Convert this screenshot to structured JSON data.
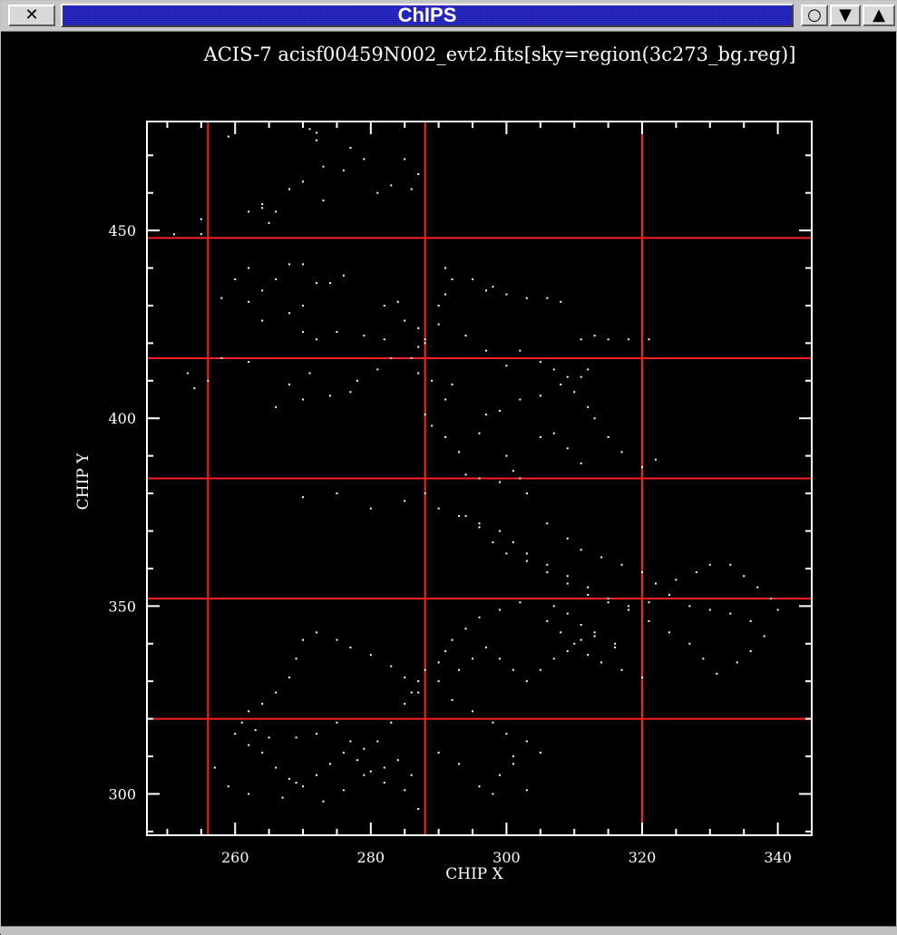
{
  "window": {
    "title": "ChIPS",
    "close_glyph": "✕",
    "iconify_glyph": "○",
    "menu_glyph": "▼",
    "maximize_glyph": "▲"
  },
  "chart_data": {
    "type": "scatter",
    "title": "ACIS-7 acisf00459N002_evt2.fits[sky=region(3c273_bg.reg)]",
    "xlabel": "CHIP X",
    "ylabel": "CHIP Y",
    "xlim": [
      247,
      345
    ],
    "ylim": [
      289,
      479
    ],
    "xticks": [
      {
        "value": 260,
        "label": "260"
      },
      {
        "value": 280,
        "label": "280"
      },
      {
        "value": 300,
        "label": "300"
      },
      {
        "value": 320,
        "label": "320"
      },
      {
        "value": 340,
        "label": "340"
      }
    ],
    "yticks": [
      {
        "value": 300,
        "label": "300"
      },
      {
        "value": 350,
        "label": "350"
      },
      {
        "value": 400,
        "label": "400"
      },
      {
        "value": 450,
        "label": "450"
      }
    ],
    "grid_x": [
      256,
      288,
      320
    ],
    "grid_y": [
      289,
      320,
      352,
      384,
      416,
      448
    ],
    "colors": {
      "background": "#000000",
      "axes": "#ffffff",
      "grid": "#ff2020",
      "points": "#ffffff"
    },
    "points": [
      [
        251,
        449
      ],
      [
        255,
        449
      ],
      [
        255,
        453
      ],
      [
        259,
        475
      ],
      [
        262,
        455
      ],
      [
        264,
        457
      ],
      [
        265,
        452
      ],
      [
        266,
        455
      ],
      [
        264,
        456
      ],
      [
        272,
        476
      ],
      [
        272,
        474
      ],
      [
        271,
        477
      ],
      [
        268,
        461
      ],
      [
        270,
        463
      ],
      [
        273,
        458
      ],
      [
        276,
        466
      ],
      [
        279,
        469
      ],
      [
        281,
        460
      ],
      [
        283,
        462
      ],
      [
        286,
        461
      ],
      [
        287,
        465
      ],
      [
        285,
        469
      ],
      [
        273,
        467
      ],
      [
        277,
        472
      ],
      [
        262,
        440
      ],
      [
        260,
        437
      ],
      [
        258,
        432
      ],
      [
        262,
        431
      ],
      [
        264,
        434
      ],
      [
        266,
        437
      ],
      [
        268,
        441
      ],
      [
        270,
        441
      ],
      [
        272,
        436
      ],
      [
        274,
        436
      ],
      [
        276,
        438
      ],
      [
        270,
        430
      ],
      [
        264,
        426
      ],
      [
        268,
        428
      ],
      [
        270,
        423
      ],
      [
        272,
        421
      ],
      [
        275,
        423
      ],
      [
        279,
        422
      ],
      [
        282,
        421
      ],
      [
        282,
        430
      ],
      [
        284,
        431
      ],
      [
        285,
        426
      ],
      [
        287,
        424
      ],
      [
        288,
        420
      ],
      [
        290,
        430
      ],
      [
        291,
        433
      ],
      [
        291,
        440
      ],
      [
        292,
        437
      ],
      [
        295,
        437
      ],
      [
        297,
        434
      ],
      [
        298,
        435
      ],
      [
        300,
        433
      ],
      [
        303,
        432
      ],
      [
        306,
        432
      ],
      [
        308,
        431
      ],
      [
        311,
        421
      ],
      [
        313,
        422
      ],
      [
        315,
        421
      ],
      [
        318,
        421
      ],
      [
        321,
        421
      ],
      [
        312,
        413
      ],
      [
        311,
        411
      ],
      [
        308,
        409
      ],
      [
        305,
        406
      ],
      [
        302,
        405
      ],
      [
        299,
        402
      ],
      [
        297,
        401
      ],
      [
        296,
        396
      ],
      [
        293,
        391
      ],
      [
        291,
        395
      ],
      [
        289,
        398
      ],
      [
        288,
        401
      ],
      [
        291,
        405
      ],
      [
        292,
        409
      ],
      [
        289,
        410
      ],
      [
        287,
        412
      ],
      [
        283,
        416
      ],
      [
        281,
        413
      ],
      [
        278,
        410
      ],
      [
        277,
        407
      ],
      [
        274,
        406
      ],
      [
        270,
        405
      ],
      [
        266,
        403
      ],
      [
        268,
        409
      ],
      [
        271,
        412
      ],
      [
        262,
        415
      ],
      [
        258,
        416
      ],
      [
        256,
        410
      ],
      [
        254,
        408
      ],
      [
        253,
        412
      ],
      [
        286,
        416
      ],
      [
        287,
        419
      ],
      [
        288,
        421
      ],
      [
        290,
        425
      ],
      [
        294,
        422
      ],
      [
        297,
        418
      ],
      [
        300,
        414
      ],
      [
        302,
        418
      ],
      [
        305,
        415
      ],
      [
        307,
        413
      ],
      [
        309,
        411
      ],
      [
        310,
        407
      ],
      [
        312,
        403
      ],
      [
        313,
        400
      ],
      [
        315,
        395
      ],
      [
        317,
        391
      ],
      [
        320,
        387
      ],
      [
        322,
        389
      ],
      [
        305,
        395
      ],
      [
        307,
        396
      ],
      [
        309,
        392
      ],
      [
        311,
        388
      ],
      [
        300,
        390
      ],
      [
        301,
        386
      ],
      [
        302,
        384
      ],
      [
        294,
        385
      ],
      [
        296,
        384
      ],
      [
        299,
        383
      ],
      [
        303,
        380
      ],
      [
        270,
        379
      ],
      [
        275,
        380
      ],
      [
        280,
        376
      ],
      [
        285,
        378
      ],
      [
        288,
        380
      ],
      [
        290,
        376
      ],
      [
        293,
        374
      ],
      [
        296,
        371
      ],
      [
        298,
        367
      ],
      [
        300,
        364
      ],
      [
        303,
        362
      ],
      [
        306,
        359
      ],
      [
        309,
        356
      ],
      [
        312,
        353
      ],
      [
        315,
        351
      ],
      [
        318,
        350
      ],
      [
        321,
        351
      ],
      [
        324,
        353
      ],
      [
        327,
        350
      ],
      [
        330,
        349
      ],
      [
        333,
        348
      ],
      [
        336,
        346
      ],
      [
        338,
        342
      ],
      [
        336,
        338
      ],
      [
        334,
        335
      ],
      [
        331,
        332
      ],
      [
        329,
        336
      ],
      [
        327,
        340
      ],
      [
        324,
        343
      ],
      [
        321,
        346
      ],
      [
        318,
        349
      ],
      [
        315,
        352
      ],
      [
        312,
        355
      ],
      [
        309,
        358
      ],
      [
        306,
        361
      ],
      [
        303,
        364
      ],
      [
        301,
        367
      ],
      [
        299,
        370
      ],
      [
        296,
        372
      ],
      [
        294,
        374
      ],
      [
        306,
        372
      ],
      [
        309,
        368
      ],
      [
        311,
        365
      ],
      [
        314,
        363
      ],
      [
        317,
        361
      ],
      [
        320,
        359
      ],
      [
        322,
        356
      ],
      [
        325,
        357
      ],
      [
        328,
        359
      ],
      [
        330,
        361
      ],
      [
        333,
        361
      ],
      [
        335,
        358
      ],
      [
        337,
        355
      ],
      [
        339,
        352
      ],
      [
        340,
        349
      ],
      [
        306,
        346
      ],
      [
        308,
        343
      ],
      [
        310,
        340
      ],
      [
        312,
        337
      ],
      [
        314,
        335
      ],
      [
        317,
        333
      ],
      [
        320,
        331
      ],
      [
        316,
        339
      ],
      [
        313,
        342
      ],
      [
        311,
        345
      ],
      [
        309,
        348
      ],
      [
        307,
        350
      ],
      [
        302,
        351
      ],
      [
        299,
        349
      ],
      [
        296,
        347
      ],
      [
        294,
        344
      ],
      [
        292,
        341
      ],
      [
        291,
        338
      ],
      [
        290,
        335
      ],
      [
        288,
        333
      ],
      [
        287,
        330
      ],
      [
        286,
        327
      ],
      [
        285,
        331
      ],
      [
        283,
        334
      ],
      [
        280,
        337
      ],
      [
        277,
        339
      ],
      [
        275,
        341
      ],
      [
        272,
        343
      ],
      [
        270,
        341
      ],
      [
        269,
        336
      ],
      [
        268,
        331
      ],
      [
        266,
        327
      ],
      [
        264,
        324
      ],
      [
        262,
        322
      ],
      [
        261,
        319
      ],
      [
        260,
        316
      ],
      [
        262,
        313
      ],
      [
        264,
        311
      ],
      [
        266,
        307
      ],
      [
        268,
        304
      ],
      [
        270,
        302
      ],
      [
        272,
        305
      ],
      [
        274,
        308
      ],
      [
        276,
        311
      ],
      [
        278,
        309
      ],
      [
        280,
        306
      ],
      [
        282,
        303
      ],
      [
        285,
        301
      ],
      [
        286,
        305
      ],
      [
        287,
        296
      ],
      [
        263,
        317
      ],
      [
        265,
        315
      ],
      [
        269,
        315
      ],
      [
        272,
        316
      ],
      [
        275,
        319
      ],
      [
        277,
        314
      ],
      [
        279,
        312
      ],
      [
        281,
        314
      ],
      [
        283,
        319
      ],
      [
        285,
        324
      ],
      [
        287,
        327
      ],
      [
        290,
        330
      ],
      [
        293,
        333
      ],
      [
        295,
        336
      ],
      [
        297,
        339
      ],
      [
        299,
        336
      ],
      [
        301,
        333
      ],
      [
        303,
        330
      ],
      [
        305,
        333
      ],
      [
        307,
        336
      ],
      [
        309,
        338
      ],
      [
        311,
        341
      ],
      [
        313,
        343
      ],
      [
        316,
        340
      ],
      [
        292,
        325
      ],
      [
        295,
        322
      ],
      [
        298,
        319
      ],
      [
        300,
        316
      ],
      [
        303,
        314
      ],
      [
        305,
        311
      ],
      [
        296,
        302
      ],
      [
        299,
        305
      ],
      [
        301,
        308
      ],
      [
        293,
        308
      ],
      [
        290,
        311
      ],
      [
        257,
        307
      ],
      [
        259,
        302
      ],
      [
        262,
        300
      ],
      [
        267,
        299
      ],
      [
        269,
        303
      ],
      [
        273,
        298
      ],
      [
        276,
        301
      ],
      [
        279,
        305
      ],
      [
        282,
        307
      ],
      [
        284,
        309
      ],
      [
        298,
        300
      ],
      [
        301,
        310
      ],
      [
        303,
        301
      ]
    ]
  }
}
